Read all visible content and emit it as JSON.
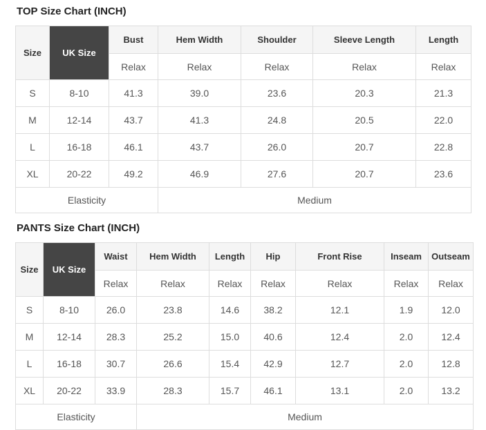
{
  "colors": {
    "dark_header_bg": "#454545",
    "dark_header_text": "#ffffff",
    "light_header_bg": "#f5f5f5",
    "border": "#dddddd",
    "title_text": "#222222",
    "header_text": "#333333",
    "cell_text": "#555555"
  },
  "chart_data": [
    {
      "type": "table",
      "title": "TOP Size Chart (INCH)",
      "columns": [
        "Size",
        "UK Size",
        "Bust",
        "Hem Width",
        "Shoulder",
        "Sleeve Length",
        "Length"
      ],
      "fit_labels": [
        "Relax",
        "Relax",
        "Relax",
        "Relax",
        "Relax"
      ],
      "rows": [
        [
          "S",
          "8-10",
          "41.3",
          "39.0",
          "23.6",
          "20.3",
          "21.3"
        ],
        [
          "M",
          "12-14",
          "43.7",
          "41.3",
          "24.8",
          "20.5",
          "22.0"
        ],
        [
          "L",
          "16-18",
          "46.1",
          "43.7",
          "26.0",
          "20.7",
          "22.8"
        ],
        [
          "XL",
          "20-22",
          "49.2",
          "46.9",
          "27.6",
          "20.7",
          "23.6"
        ]
      ],
      "footer": {
        "label": "Elasticity",
        "value": "Medium",
        "label_colspan": 3
      }
    },
    {
      "type": "table",
      "title": "PANTS Size Chart (INCH)",
      "columns": [
        "Size",
        "UK Size",
        "Waist",
        "Hem Width",
        "Length",
        "Hip",
        "Front Rise",
        "Inseam",
        "Outseam"
      ],
      "fit_labels": [
        "Relax",
        "Relax",
        "Relax",
        "Relax",
        "Relax",
        "Relax",
        "Relax"
      ],
      "rows": [
        [
          "S",
          "8-10",
          "26.0",
          "23.8",
          "14.6",
          "38.2",
          "12.1",
          "1.9",
          "12.0"
        ],
        [
          "M",
          "12-14",
          "28.3",
          "25.2",
          "15.0",
          "40.6",
          "12.4",
          "2.0",
          "12.4"
        ],
        [
          "L",
          "16-18",
          "30.7",
          "26.6",
          "15.4",
          "42.9",
          "12.7",
          "2.0",
          "12.8"
        ],
        [
          "XL",
          "20-22",
          "33.9",
          "28.3",
          "15.7",
          "46.1",
          "13.1",
          "2.0",
          "13.2"
        ]
      ],
      "footer": {
        "label": "Elasticity",
        "value": "Medium",
        "label_colspan": 3
      }
    }
  ]
}
